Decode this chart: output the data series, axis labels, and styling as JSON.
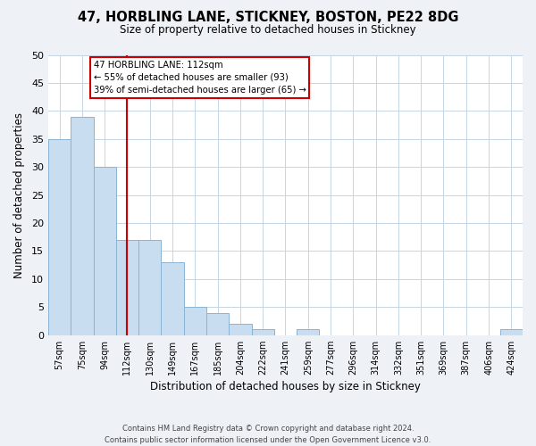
{
  "title1": "47, HORBLING LANE, STICKNEY, BOSTON, PE22 8DG",
  "title2": "Size of property relative to detached houses in Stickney",
  "xlabel": "Distribution of detached houses by size in Stickney",
  "ylabel": "Number of detached properties",
  "bar_labels": [
    "57sqm",
    "75sqm",
    "94sqm",
    "112sqm",
    "130sqm",
    "149sqm",
    "167sqm",
    "185sqm",
    "204sqm",
    "222sqm",
    "241sqm",
    "259sqm",
    "277sqm",
    "296sqm",
    "314sqm",
    "332sqm",
    "351sqm",
    "369sqm",
    "387sqm",
    "406sqm",
    "424sqm"
  ],
  "bar_values": [
    35,
    39,
    30,
    17,
    17,
    13,
    5,
    4,
    2,
    1,
    0,
    1,
    0,
    0,
    0,
    0,
    0,
    0,
    0,
    0,
    1
  ],
  "bar_color": "#c8ddf0",
  "bar_edge_color": "#8ab4d4",
  "vline_index": 3,
  "annotation_box_text": "47 HORBLING LANE: 112sqm\n← 55% of detached houses are smaller (93)\n39% of semi-detached houses are larger (65) →",
  "vline_color": "#cc0000",
  "ylim": [
    0,
    50
  ],
  "yticks": [
    0,
    5,
    10,
    15,
    20,
    25,
    30,
    35,
    40,
    45,
    50
  ],
  "footer_line1": "Contains HM Land Registry data © Crown copyright and database right 2024.",
  "footer_line2": "Contains public sector information licensed under the Open Government Licence v3.0.",
  "bg_color": "#eef2f7",
  "plot_bg_color": "#ffffff",
  "grid_color": "#c5d5e5"
}
